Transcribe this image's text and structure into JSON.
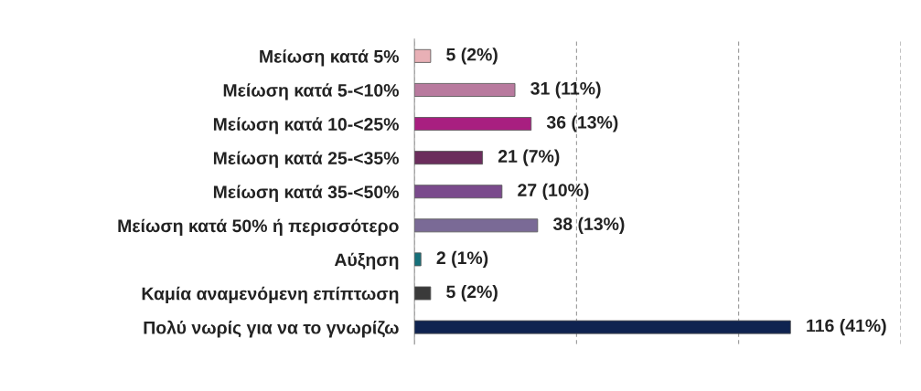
{
  "chart_data": {
    "type": "bar",
    "orientation": "horizontal",
    "categories": [
      "Μείωση κατά 5%",
      "Μείωση κατά 5-<10%",
      "Μείωση κατά 10-<25%",
      "Μείωση κατά 25-<35%",
      "Μείωση κατά 35-<50%",
      "Μείωση κατά 50% ή περισσότερο",
      "Αύξηση",
      "Καμία αναμενόμενη επίπτωση",
      "Πολύ νωρίς για να το γνωρίζω"
    ],
    "values": [
      5,
      31,
      36,
      21,
      27,
      38,
      2,
      5,
      116
    ],
    "colors": [
      "#e8b0b6",
      "#b87a9e",
      "#a81f80",
      "#6b2d5c",
      "#7a4a8c",
      "#7a6a96",
      "#16707a",
      "#3a3a3a",
      "#0f2350"
    ],
    "value_labels": [
      "5 (2%)",
      "31 (11%)",
      "36 (13%)",
      "21 (7%)",
      "27 (10%)",
      "38 (13%)",
      "2 (1%)",
      "5 (2%)",
      "116 (41%)"
    ],
    "xlim": [
      0,
      150
    ],
    "xticks": [
      {
        "value": 0,
        "label": null
      },
      {
        "value": 50,
        "label": null
      },
      {
        "value": 100,
        "label": null
      },
      {
        "value": 150,
        "label": null
      }
    ],
    "grid": "x",
    "tick_labels": "y"
  }
}
